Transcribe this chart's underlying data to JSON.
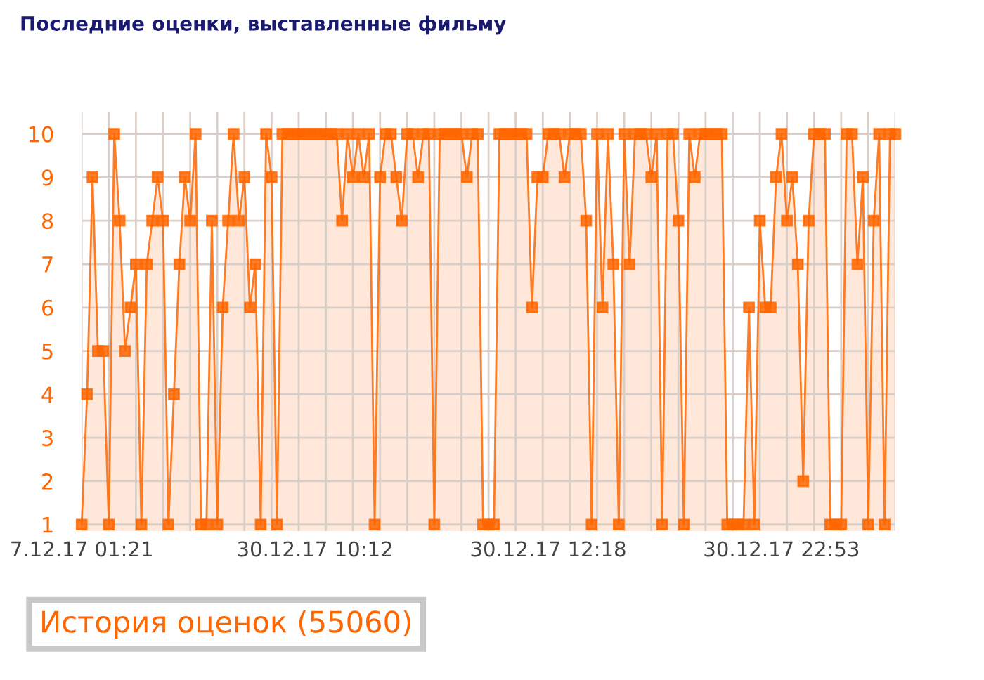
{
  "chart_data": {
    "type": "area",
    "title": "Последние оценки, выставленные фильму",
    "categories": [
      "7.12.17 01:21",
      null,
      null,
      null,
      null,
      null,
      null,
      null,
      null,
      null,
      null,
      null,
      null,
      null,
      null,
      null,
      null,
      null,
      null,
      null,
      null,
      null,
      null,
      null,
      null,
      null,
      null,
      null,
      null,
      null,
      null,
      null,
      null,
      null,
      null,
      null,
      null,
      null,
      null,
      null,
      null,
      null,
      null,
      "30.12.17 10:12",
      null,
      null,
      null,
      null,
      null,
      null,
      null,
      null,
      null,
      null,
      null,
      null,
      null,
      null,
      null,
      null,
      null,
      null,
      null,
      null,
      null,
      null,
      null,
      null,
      null,
      null,
      null,
      null,
      null,
      null,
      null,
      null,
      null,
      null,
      null,
      null,
      null,
      null,
      null,
      null,
      null,
      null,
      "30.12.17 12:18",
      null,
      null,
      null,
      null,
      null,
      null,
      null,
      null,
      null,
      null,
      null,
      null,
      null,
      null,
      null,
      null,
      null,
      null,
      null,
      null,
      null,
      null,
      null,
      null,
      null,
      null,
      null,
      null,
      null,
      null,
      null,
      null,
      null,
      null,
      null,
      null,
      null,
      null,
      null,
      null,
      null,
      null,
      "30.12.17 22:53",
      null,
      null,
      null,
      null,
      null,
      null,
      null,
      null,
      null,
      null,
      null,
      null,
      null,
      null,
      null,
      null,
      null,
      null,
      null,
      null,
      null
    ],
    "series": [
      {
        "color": "#ff6600",
        "values": [
          1,
          4,
          9,
          5,
          5,
          1,
          10,
          8,
          5,
          6,
          7,
          1,
          7,
          8,
          9,
          8,
          1,
          4,
          7,
          9,
          8,
          10,
          1,
          1,
          8,
          1,
          6,
          8,
          10,
          8,
          9,
          6,
          7,
          1,
          10,
          9,
          1,
          10,
          10,
          10,
          10,
          10,
          10,
          10,
          10,
          10,
          10,
          10,
          8,
          10,
          9,
          10,
          9,
          10,
          1,
          9,
          10,
          10,
          9,
          8,
          10,
          10,
          9,
          10,
          10,
          1,
          10,
          10,
          10,
          10,
          10,
          9,
          10,
          10,
          1,
          1,
          1,
          10,
          10,
          10,
          10,
          10,
          10,
          6,
          9,
          9,
          10,
          10,
          10,
          9,
          10,
          10,
          10,
          8,
          1,
          10,
          6,
          10,
          7,
          1,
          10,
          7,
          10,
          10,
          10,
          9,
          10,
          1,
          10,
          10,
          8,
          1,
          10,
          9,
          10,
          10,
          10,
          10,
          10,
          1,
          1,
          1,
          1,
          6,
          1,
          8,
          6,
          6,
          9,
          10,
          8,
          9,
          7,
          2,
          8,
          10,
          10,
          10,
          1,
          1,
          1,
          10,
          10,
          7,
          9,
          1,
          8,
          10,
          1,
          10,
          10
        ]
      }
    ],
    "ylim": [
      0.85,
      10.5
    ],
    "yticks": [
      1,
      2,
      3,
      4,
      5,
      6,
      7,
      8,
      9,
      10
    ],
    "grid": true,
    "marker": "square",
    "annotations": [
      "История оценок (55060)"
    ]
  }
}
